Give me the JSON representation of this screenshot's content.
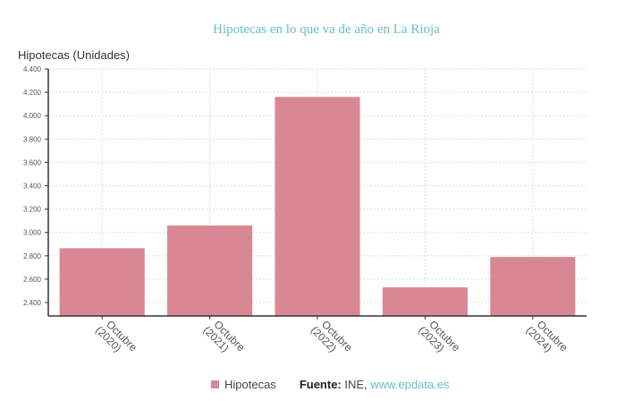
{
  "title": "Hipotecas en lo que va de año en La Rioja",
  "colors": {
    "bar": "#d98893",
    "title": "#6bbdc6",
    "axis": "#333333",
    "grid": "#dddddd"
  },
  "legend": {
    "series_label": "Hipotecas",
    "source_label": "Fuente:",
    "source_name": "INE,",
    "source_link": "www.epdata.es"
  },
  "chart_data": {
    "type": "bar",
    "title": "Hipotecas en lo que va de año en La Rioja",
    "xlabel": "",
    "ylabel": "Hipotecas (Unidades)",
    "categories": [
      "Octubre (2020)",
      "Octubre (2021)",
      "Octubre (2022)",
      "Octubre (2023)",
      "Octubre (2024)"
    ],
    "series": [
      {
        "name": "Hipotecas",
        "values": [
          2865,
          3060,
          4160,
          2530,
          2790
        ]
      }
    ],
    "yticks": [
      2400,
      2600,
      2800,
      3000,
      3200,
      3400,
      3600,
      3800,
      4000,
      4200,
      4400
    ],
    "ytick_labels": [
      "2.400",
      "2.600",
      "2.800",
      "3.000",
      "3.200",
      "3.400",
      "3.600",
      "3.800",
      "4.000",
      "4.200",
      "4.400"
    ],
    "ylim": [
      2285,
      4400
    ],
    "grid": true,
    "legend_position": "bottom",
    "source": "Fuente: INE, www.epdata.es"
  }
}
